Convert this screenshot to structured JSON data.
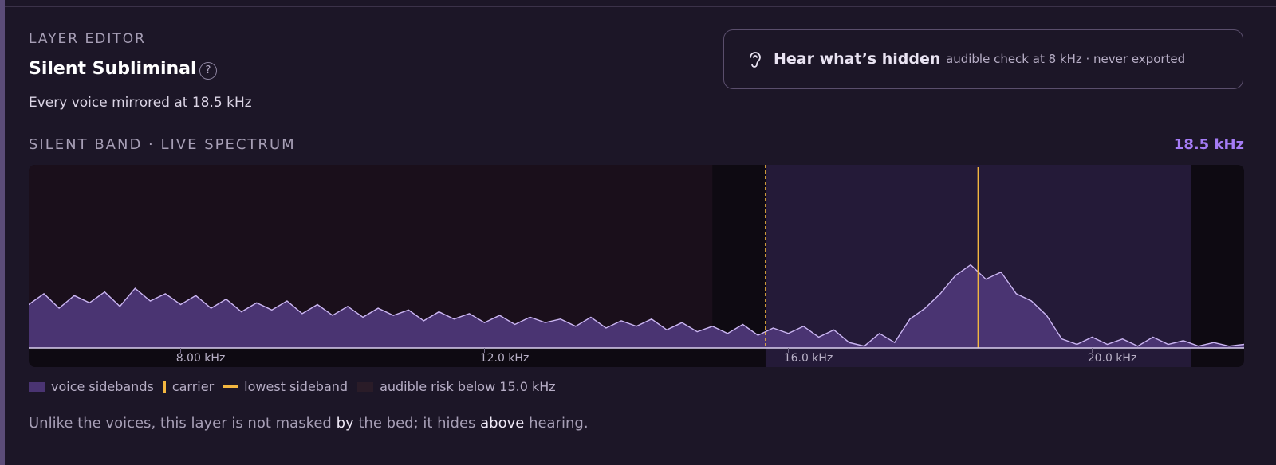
{
  "header": {
    "eyebrow": "LAYER EDITOR",
    "title": "Silent Subliminal",
    "help": "?",
    "subtitle": "Every voice mirrored at 18.5 kHz"
  },
  "hear_button": {
    "title": "Hear what’s hidden",
    "note": "audible check at 8 kHz · never exported"
  },
  "chart_data": {
    "type": "area",
    "title": "SILENT BAND · LIVE SPECTRUM",
    "band_label": "18.5 kHz",
    "xlim": [
      6,
      22
    ],
    "ylim": [
      0,
      1
    ],
    "xticks": [
      {
        "value": 8,
        "label": "8.00 kHz"
      },
      {
        "value": 12,
        "label": "12.0 kHz"
      },
      {
        "value": 16,
        "label": "16.0 kHz"
      },
      {
        "value": 20,
        "label": "20.0 kHz"
      }
    ],
    "risk_limit": 15,
    "lowest_sideband": 15.7,
    "carrier": 18.5,
    "upper_limit": 21.3,
    "color": "#4a3472",
    "line_color": "#cbb6f2",
    "carrier_color": "#f2b640",
    "x": [
      6.0,
      6.2,
      6.4,
      6.6,
      6.8,
      7.0,
      7.2,
      7.4,
      7.6,
      7.8,
      8.0,
      8.2,
      8.4,
      8.6,
      8.8,
      9.0,
      9.2,
      9.4,
      9.6,
      9.8,
      10.0,
      10.2,
      10.4,
      10.6,
      10.8,
      11.0,
      11.2,
      11.4,
      11.6,
      11.8,
      12.0,
      12.2,
      12.4,
      12.6,
      12.8,
      13.0,
      13.2,
      13.4,
      13.6,
      13.8,
      14.0,
      14.2,
      14.4,
      14.6,
      14.8,
      15.0,
      15.2,
      15.4,
      15.6,
      15.8,
      16.0,
      16.2,
      16.4,
      16.6,
      16.8,
      17.0,
      17.2,
      17.4,
      17.6,
      17.8,
      18.0,
      18.2,
      18.4,
      18.6,
      18.8,
      19.0,
      19.2,
      19.4,
      19.6,
      19.8,
      20.0,
      20.2,
      20.4,
      20.6,
      20.8,
      21.0,
      21.2,
      21.4,
      21.6,
      21.8,
      22.0
    ],
    "values": [
      0.24,
      0.3,
      0.22,
      0.29,
      0.25,
      0.31,
      0.23,
      0.33,
      0.26,
      0.3,
      0.24,
      0.29,
      0.22,
      0.27,
      0.2,
      0.25,
      0.21,
      0.26,
      0.19,
      0.24,
      0.18,
      0.23,
      0.17,
      0.22,
      0.18,
      0.21,
      0.15,
      0.2,
      0.16,
      0.19,
      0.14,
      0.18,
      0.13,
      0.17,
      0.14,
      0.16,
      0.12,
      0.17,
      0.11,
      0.15,
      0.12,
      0.16,
      0.1,
      0.14,
      0.09,
      0.12,
      0.08,
      0.13,
      0.07,
      0.11,
      0.08,
      0.12,
      0.06,
      0.1,
      0.03,
      0.01,
      0.08,
      0.03,
      0.16,
      0.22,
      0.3,
      0.4,
      0.46,
      0.38,
      0.42,
      0.3,
      0.26,
      0.18,
      0.05,
      0.02,
      0.06,
      0.02,
      0.05,
      0.01,
      0.06,
      0.02,
      0.04,
      0.01,
      0.03,
      0.01,
      0.02
    ],
    "legend": [
      "voice sidebands",
      "carrier",
      "lowest sideband",
      "audible risk below 15.0 kHz"
    ]
  },
  "footer": [
    "Unlike the voices, this layer is not masked ",
    "by",
    " the bed; it hides ",
    "above",
    " hearing."
  ]
}
